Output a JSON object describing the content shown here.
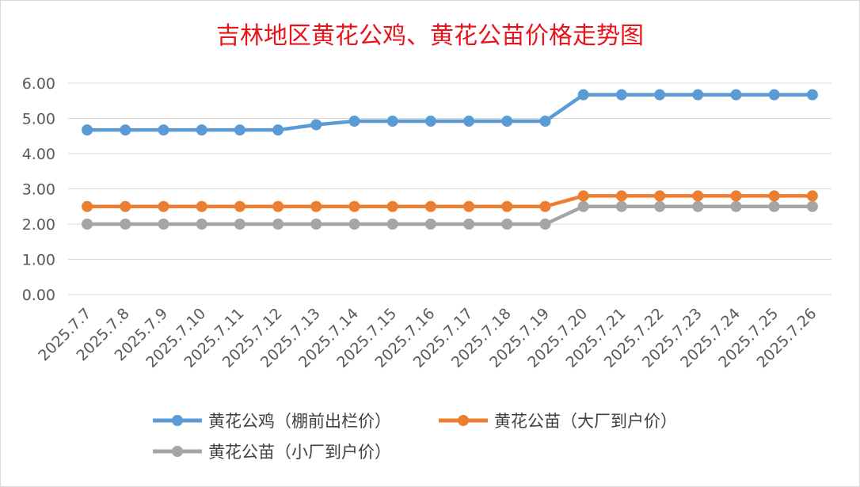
{
  "chart_data": {
    "type": "line",
    "title": "吉林地区黄花公鸡、黄花公苗价格走势图",
    "xlabel": "",
    "ylabel": "",
    "ylim": [
      0,
      6
    ],
    "yticks": [
      "0.00",
      "1.00",
      "2.00",
      "3.00",
      "4.00",
      "5.00",
      "6.00"
    ],
    "grid": true,
    "legend_position": "bottom",
    "categories": [
      "2025.7.7",
      "2025.7.8",
      "2025.7.9",
      "2025.7.10",
      "2025.7.11",
      "2025.7.12",
      "2025.7.13",
      "2025.7.14",
      "2025.7.15",
      "2025.7.16",
      "2025.7.17",
      "2025.7.18",
      "2025.7.19",
      "2025.7.20",
      "2025.7.21",
      "2025.7.22",
      "2025.7.23",
      "2025.7.24",
      "2025.7.25",
      "2025.7.26"
    ],
    "series": [
      {
        "name": "黄花公鸡（棚前出栏价）",
        "color": "#5b9bd5",
        "values": [
          4.67,
          4.67,
          4.67,
          4.67,
          4.67,
          4.67,
          4.82,
          4.92,
          4.92,
          4.92,
          4.92,
          4.92,
          4.92,
          5.67,
          5.67,
          5.67,
          5.67,
          5.67,
          5.67,
          5.67
        ]
      },
      {
        "name": "黄花公苗（大厂到户价）",
        "color": "#ed7d31",
        "values": [
          2.5,
          2.5,
          2.5,
          2.5,
          2.5,
          2.5,
          2.5,
          2.5,
          2.5,
          2.5,
          2.5,
          2.5,
          2.5,
          2.8,
          2.8,
          2.8,
          2.8,
          2.8,
          2.8,
          2.8
        ]
      },
      {
        "name": "黄花公苗（小厂到户价）",
        "color": "#a5a5a5",
        "values": [
          2.0,
          2.0,
          2.0,
          2.0,
          2.0,
          2.0,
          2.0,
          2.0,
          2.0,
          2.0,
          2.0,
          2.0,
          2.0,
          2.5,
          2.5,
          2.5,
          2.5,
          2.5,
          2.5,
          2.5
        ]
      }
    ]
  }
}
